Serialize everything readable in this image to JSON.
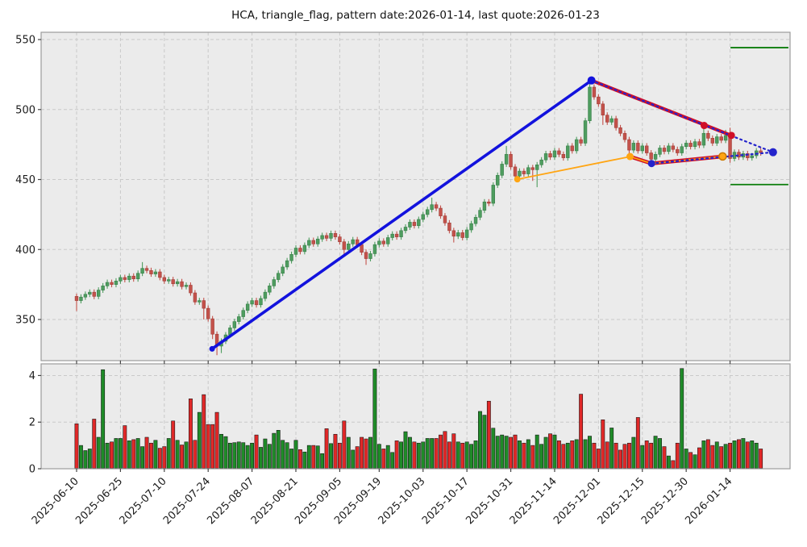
{
  "title": "HCA, triangle_flag, pattern date:2026-01-14, last quote:2026-01-23",
  "symbol": "HCA",
  "pattern_type": "triangle_flag",
  "pattern_date": "2026-01-14",
  "last_quote_date": "2026-01-23",
  "colors": {
    "up": "#4e9d5f",
    "up_edge": "#3a7f4a",
    "down": "#c4524b",
    "down_edge": "#a03f39",
    "vol_up": "#1f8b28",
    "vol_down": "#e02828",
    "vol_edge": "#111111",
    "flagpole": "#1212dd",
    "trend": "#d00f28",
    "orange": "#ffa513",
    "dotted": "#2424cc",
    "level": "#0b7d0b",
    "bg": "#ebebeb",
    "grid": "#c9c9c9",
    "spine": "#9b9b9b",
    "text": "#1c1c1c"
  },
  "chart_data": [
    {
      "type": "candlestick",
      "name": "price",
      "title": "HCA, triangle_flag, pattern date:2026-01-14, last quote:2026-01-23",
      "xlabel": "",
      "ylabel": "",
      "grid": true,
      "y_ticks": [
        350,
        400,
        450,
        500,
        550
      ],
      "ylim": [
        320.6,
        555.2
      ],
      "x_ticks": [
        {
          "bar": 0,
          "label": "2025-06-10"
        },
        {
          "bar": 10,
          "label": "2025-06-25"
        },
        {
          "bar": 20,
          "label": "2025-07-10"
        },
        {
          "bar": 30,
          "label": "2025-07-24"
        },
        {
          "bar": 40,
          "label": "2025-08-07"
        },
        {
          "bar": 50,
          "label": "2025-08-21"
        },
        {
          "bar": 60,
          "label": "2025-09-05"
        },
        {
          "bar": 69,
          "label": "2025-09-19"
        },
        {
          "bar": 79,
          "label": "2025-10-03"
        },
        {
          "bar": 89,
          "label": "2025-10-17"
        },
        {
          "bar": 99,
          "label": "2025-10-31"
        },
        {
          "bar": 109,
          "label": "2025-11-14"
        },
        {
          "bar": 119,
          "label": "2025-12-01"
        },
        {
          "bar": 129,
          "label": "2025-12-15"
        },
        {
          "bar": 139,
          "label": "2025-12-30"
        },
        {
          "bar": 149,
          "label": "2026-01-14"
        }
      ],
      "open": [
        366.5,
        363.5,
        366,
        368,
        369.5,
        366.5,
        371,
        374,
        376.5,
        375,
        377.5,
        380,
        378.5,
        381,
        379,
        383,
        386.5,
        385,
        382.5,
        384,
        380,
        377.5,
        378.5,
        375.5,
        377,
        373.5,
        374.5,
        369,
        362.5,
        363.5,
        358,
        350.5,
        339.5,
        331,
        334.5,
        339,
        344,
        348.5,
        352,
        356.5,
        361,
        363.5,
        360.5,
        365,
        369.5,
        374,
        378.5,
        383,
        387.5,
        392,
        396.5,
        401,
        398.5,
        403,
        406.5,
        404,
        407.5,
        410,
        408,
        411.5,
        409,
        405.5,
        400,
        404,
        407,
        403.5,
        398,
        393.5,
        397,
        403.5,
        406,
        404,
        408.5,
        411,
        409,
        413.5,
        416,
        419.5,
        417,
        421.5,
        425,
        428.5,
        432,
        429.5,
        424,
        419,
        413.5,
        409.5,
        412,
        408.5,
        414,
        418.5,
        423,
        428,
        434,
        433,
        446,
        453,
        461,
        468,
        459,
        452.5,
        456,
        454,
        458.5,
        457,
        460.5,
        464,
        468.5,
        466,
        470.5,
        468,
        465.5,
        474,
        470.5,
        478.5,
        476,
        492,
        516,
        509,
        504,
        496,
        491,
        493.5,
        487,
        483,
        478.5,
        471,
        476,
        470.5,
        474,
        469,
        464.5,
        468,
        472.5,
        470,
        474,
        471.5,
        469,
        473.5,
        476,
        473.5,
        477,
        474.5,
        483,
        479.5,
        476,
        480.5,
        478,
        481.5,
        465,
        469.5,
        466,
        468.5,
        465.5,
        467,
        470.5
      ],
      "high": [
        368.5,
        368,
        370,
        371.5,
        371.5,
        373,
        376,
        378.5,
        378.5,
        379.5,
        382,
        382,
        383,
        383,
        385,
        391,
        388.5,
        387,
        386,
        386,
        382,
        380.5,
        380.5,
        379,
        379,
        376.5,
        376.5,
        371,
        365.5,
        365.5,
        360,
        352.5,
        341.5,
        336.5,
        341,
        346,
        350.5,
        354,
        358.5,
        363,
        365.5,
        365.5,
        367,
        371.5,
        376,
        380.5,
        385,
        389.5,
        394,
        398.5,
        403,
        403,
        405,
        408.5,
        408.5,
        409.5,
        412,
        412,
        413.5,
        413.5,
        411,
        407.5,
        406,
        409,
        409,
        405.5,
        400,
        399,
        405.5,
        408,
        408,
        410.5,
        413,
        413,
        415.5,
        418,
        421.5,
        421.5,
        423.5,
        427,
        430.5,
        437,
        434,
        431.5,
        426,
        421,
        415.5,
        414,
        414,
        416,
        420.5,
        425,
        430,
        436,
        436,
        448,
        455,
        463,
        474,
        470,
        461,
        458,
        458,
        460.5,
        460.5,
        462.5,
        466,
        470.5,
        470.5,
        472.5,
        472.5,
        470,
        476,
        476,
        480.5,
        480.5,
        494,
        522.5,
        518,
        511,
        506,
        498,
        495.5,
        495.5,
        489,
        485,
        480.5,
        478,
        478,
        476,
        476,
        471,
        470,
        474.5,
        474.5,
        476,
        476,
        473.5,
        475.5,
        478,
        478,
        479,
        479,
        489,
        485,
        481.5,
        482.5,
        482.5,
        485.5,
        487,
        471.5,
        471.5,
        470.5,
        470.5,
        469,
        472.5,
        472.5
      ],
      "low": [
        356,
        361.5,
        364,
        366,
        364.5,
        364.5,
        369,
        372,
        373,
        373,
        375.5,
        376.5,
        376.5,
        377,
        377,
        381,
        383,
        380.5,
        380.5,
        378,
        375.5,
        375.5,
        373.5,
        373.5,
        371.5,
        371.5,
        367,
        360.5,
        360.5,
        350,
        348.5,
        336,
        324.5,
        326,
        332.5,
        337,
        342,
        346.5,
        350,
        354.5,
        359,
        358.5,
        358.5,
        363,
        367.5,
        372,
        376.5,
        381,
        385.5,
        390,
        394.5,
        396.5,
        396.5,
        401,
        402,
        402,
        405.5,
        406,
        406,
        407,
        403.5,
        395.5,
        398,
        402,
        401.5,
        396,
        389,
        391.5,
        395,
        401.5,
        402,
        402,
        406.5,
        407,
        407,
        411.5,
        414,
        415,
        415,
        419.5,
        423,
        426.5,
        427.5,
        422,
        417,
        411.5,
        405,
        407.5,
        406.5,
        406.5,
        412,
        416.5,
        421,
        426,
        431,
        431,
        444,
        451,
        459,
        457,
        449.5,
        450.5,
        452,
        452,
        449,
        444.5,
        458.5,
        462,
        464,
        464,
        466,
        463.5,
        463.5,
        468.5,
        468.5,
        474,
        474,
        490,
        507,
        502,
        489,
        489,
        489,
        485,
        481,
        476.5,
        466.4,
        469,
        468.5,
        468.5,
        467,
        461,
        462.5,
        466,
        468,
        468,
        469.5,
        467,
        467,
        471.5,
        471.5,
        471.5,
        472.5,
        472.5,
        477.5,
        474,
        474,
        476,
        476,
        462,
        463,
        464,
        464,
        463.5,
        463.5,
        465,
        467
      ],
      "close": [
        363.5,
        366,
        368,
        369.5,
        366.5,
        371,
        374,
        376.5,
        375,
        377.5,
        380,
        378.5,
        381,
        379,
        383,
        386.5,
        385,
        382.5,
        384,
        380,
        377.5,
        378.5,
        375.5,
        377,
        373.5,
        374.5,
        369,
        362.5,
        363.5,
        358,
        350.5,
        339.5,
        331,
        334.5,
        339,
        344,
        348.5,
        352,
        356.5,
        361,
        363.5,
        360.5,
        365,
        369.5,
        374,
        378.5,
        383,
        387.5,
        392,
        396.5,
        401,
        398.5,
        403,
        406.5,
        404,
        407.5,
        410,
        408,
        411.5,
        409,
        405.5,
        400,
        404,
        407,
        403.5,
        398,
        393.5,
        397,
        403.5,
        406,
        404,
        408.5,
        411,
        409,
        413.5,
        416,
        419.5,
        417,
        421.5,
        425,
        428.5,
        432,
        429.5,
        424,
        419,
        413.5,
        409.5,
        412,
        408.5,
        414,
        418.5,
        423,
        428,
        434,
        433,
        446,
        453,
        461,
        468,
        459,
        452.5,
        456,
        454,
        458.5,
        457,
        460.5,
        464,
        468.5,
        466,
        470.5,
        468,
        465.5,
        474,
        470.5,
        478.5,
        476,
        492,
        516,
        509,
        504,
        496,
        491,
        493.5,
        487,
        483,
        478.5,
        471,
        476,
        470.5,
        474,
        469,
        464.5,
        468,
        472.5,
        470,
        474,
        471.5,
        469,
        473.5,
        476,
        473.5,
        477,
        474.5,
        483,
        479.5,
        476,
        480.5,
        478,
        481.5,
        465,
        469.5,
        466,
        468.5,
        465.5,
        467,
        470.5,
        469
      ]
    },
    {
      "type": "bar",
      "name": "volume",
      "y_ticks": [
        0,
        2,
        4
      ],
      "ylim": [
        0,
        4.5
      ],
      "color_rule": "green if close >= open else red",
      "values": [
        1.93,
        1.0,
        0.78,
        0.85,
        2.13,
        1.35,
        4.25,
        1.1,
        1.15,
        1.3,
        1.3,
        1.85,
        1.2,
        1.25,
        1.3,
        0.95,
        1.35,
        1.1,
        1.22,
        0.88,
        0.95,
        1.3,
        2.05,
        1.22,
        1.02,
        1.15,
        3.0,
        1.22,
        2.42,
        3.18,
        1.9,
        1.9,
        2.42,
        1.48,
        1.38,
        1.1,
        1.12,
        1.15,
        1.12,
        1.0,
        1.1,
        1.45,
        0.92,
        1.28,
        1.05,
        1.52,
        1.65,
        1.22,
        1.12,
        0.85,
        1.22,
        0.82,
        0.72,
        1.0,
        1.0,
        0.98,
        0.65,
        1.72,
        1.08,
        1.48,
        1.1,
        2.05,
        1.35,
        0.8,
        0.95,
        1.35,
        1.28,
        1.35,
        4.28,
        1.05,
        0.85,
        1.0,
        0.7,
        1.2,
        1.15,
        1.59,
        1.35,
        1.15,
        1.1,
        1.15,
        1.3,
        1.3,
        1.3,
        1.45,
        1.6,
        1.15,
        1.5,
        1.15,
        1.1,
        1.15,
        1.05,
        1.2,
        2.46,
        2.3,
        2.9,
        1.74,
        1.4,
        1.45,
        1.4,
        1.35,
        1.45,
        1.2,
        1.1,
        1.25,
        1.0,
        1.45,
        1.05,
        1.35,
        1.5,
        1.45,
        1.2,
        1.05,
        1.1,
        1.2,
        1.25,
        3.2,
        1.25,
        1.4,
        1.1,
        0.85,
        2.1,
        1.15,
        1.75,
        1.1,
        0.8,
        1.05,
        1.1,
        1.35,
        2.2,
        1.0,
        1.2,
        1.1,
        1.4,
        1.3,
        0.95,
        0.55,
        0.35,
        1.1,
        4.3,
        0.85,
        0.7,
        0.6,
        0.9,
        1.2,
        1.25,
        1.0,
        1.15,
        0.95,
        1.05,
        1.1,
        1.2,
        1.25,
        1.3,
        1.15,
        1.2,
        1.1,
        0.85
      ]
    }
  ],
  "overlays": {
    "flagpole_line": {
      "color": "flagpole",
      "width": 3.6,
      "points": [
        {
          "bar": 30.9,
          "price": 329
        },
        {
          "bar": 117.4,
          "price": 520.8
        }
      ]
    },
    "upper_trendline": {
      "color": "trend",
      "width": 4.2,
      "points": [
        {
          "bar": 117.4,
          "price": 520.8
        },
        {
          "bar": 149.3,
          "price": 481.5
        }
      ]
    },
    "lower_trendline": {
      "color": "trend",
      "width": 4.6,
      "orange_overlay": true,
      "points": [
        {
          "bar": 126.2,
          "price": 466.4
        },
        {
          "bar": 131.1,
          "price": 461.4
        },
        {
          "bar": 147.3,
          "price": 466.5
        }
      ]
    },
    "support_line": {
      "color": "orange",
      "width": 1.8,
      "points": [
        {
          "bar": 100.5,
          "price": 450.2
        },
        {
          "bar": 126.2,
          "price": 466.4
        }
      ]
    },
    "apex_projection_upper": {
      "color": "dotted",
      "style": "dotted",
      "width": 2.2,
      "points": [
        {
          "bar": 117.4,
          "price": 520.8
        },
        {
          "bar": 158.8,
          "price": 469.5
        }
      ]
    },
    "apex_projection_lower": {
      "color": "dotted",
      "style": "dotted",
      "width": 2.2,
      "points": [
        {
          "bar": 131.1,
          "price": 461.4
        },
        {
          "bar": 158.8,
          "price": 469.5
        }
      ]
    },
    "markers": [
      {
        "bar": 30.9,
        "price": 329,
        "color": "flagpole",
        "r": 3.5
      },
      {
        "bar": 117.4,
        "price": 520.8,
        "color": "flagpole",
        "r": 5
      },
      {
        "bar": 143.1,
        "price": 488.6,
        "color": "trend",
        "r": 4.5
      },
      {
        "bar": 149.3,
        "price": 481.5,
        "color": "trend",
        "r": 4.5
      },
      {
        "bar": 100.5,
        "price": 450.2,
        "color": "orange",
        "r": 4
      },
      {
        "bar": 126.2,
        "price": 466.4,
        "color": "orange",
        "r": 4.5
      },
      {
        "bar": 131.1,
        "price": 461.4,
        "color": "dotted",
        "r": 4.5
      },
      {
        "bar": 147.3,
        "price": 466.5,
        "color": "orange",
        "r": 4.5,
        "ring": true
      },
      {
        "bar": 158.8,
        "price": 469.5,
        "color": "dotted",
        "r": 5
      }
    ],
    "level_lines": [
      {
        "price": 544.2,
        "from_bar": 149.1,
        "to_bar": 162.3,
        "color": "level",
        "width": 1.8
      },
      {
        "price": 446.4,
        "from_bar": 149.1,
        "to_bar": 162.3,
        "color": "level",
        "width": 1.8
      }
    ]
  }
}
